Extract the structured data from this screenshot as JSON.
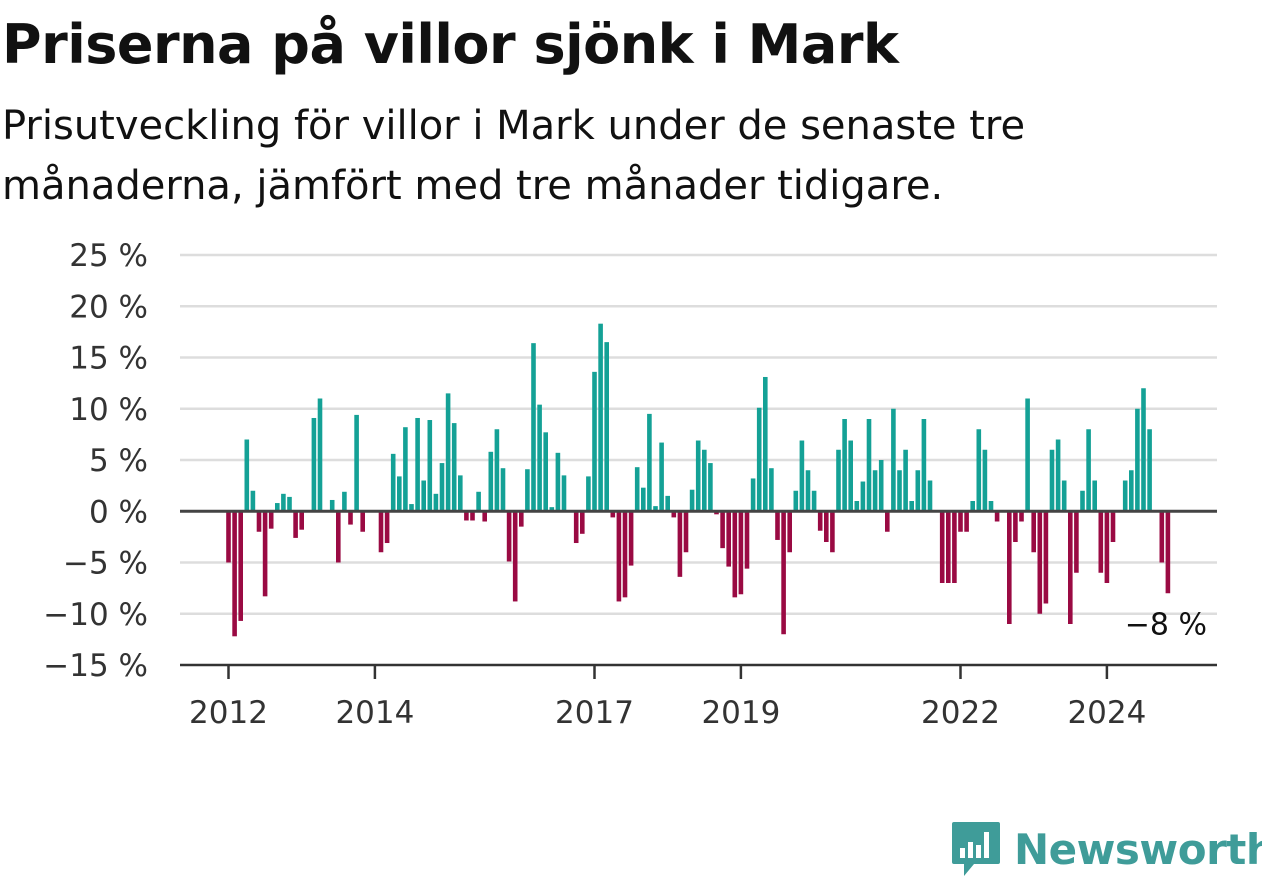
{
  "title": "Priserna på villor sjönk i Mark",
  "subtitle": "Prisutveckling för villor i Mark under de senaste tre månaderna, jämfört med tre månader tidigare.",
  "brand": {
    "name": "Newsworthy",
    "icon": "newsworthy-chart-bubble-icon",
    "color": "#3f9c99"
  },
  "chart_data": {
    "type": "bar",
    "x_start": "2012-01",
    "x_interval": "month",
    "y_unit": "%",
    "ylim": [
      -15,
      25
    ],
    "yticks": [
      -15,
      -10,
      -5,
      0,
      5,
      10,
      15,
      20,
      25
    ],
    "ytick_labels": [
      "−15 %",
      "−10 %",
      "−5 %",
      "0 %",
      "5 %",
      "10 %",
      "15 %",
      "20 %",
      "25 %"
    ],
    "xtick_labels": [
      "2012",
      "2014",
      "2017",
      "2019",
      "2022",
      "2024"
    ],
    "xtick_years": [
      2012,
      2014,
      2017,
      2019,
      2022,
      2024
    ],
    "grid": true,
    "legend": "none",
    "positive_color": "#14a196",
    "negative_color": "#9a0a43",
    "values": [
      -5,
      -12.2,
      -10.7,
      7,
      2,
      -2,
      -8.3,
      -1.7,
      0.8,
      1.7,
      1.4,
      -2.6,
      -1.8,
      0,
      9.1,
      11,
      0,
      1.1,
      -5,
      1.9,
      -1.3,
      9.4,
      -2,
      0,
      0,
      -4,
      -3.1,
      5.6,
      3.4,
      8.2,
      0.7,
      9.1,
      3,
      8.9,
      1.7,
      4.7,
      11.5,
      8.6,
      3.5,
      -0.9,
      -0.9,
      1.9,
      -1,
      5.8,
      8,
      4.2,
      -4.9,
      -8.8,
      -1.5,
      4.1,
      16.4,
      10.4,
      7.7,
      0.4,
      5.7,
      3.5,
      0,
      -3.1,
      -2.2,
      3.4,
      13.6,
      18.3,
      16.5,
      -0.6,
      -8.8,
      -8.4,
      -5.3,
      4.3,
      2.3,
      9.5,
      0.5,
      6.7,
      1.5,
      -0.6,
      -6.4,
      -4,
      2.1,
      6.9,
      6,
      4.7,
      -0.3,
      -3.6,
      -5.4,
      -8.4,
      -8.1,
      -5.6,
      3.2,
      10.1,
      13.1,
      4.2,
      -2.8,
      -12,
      -4,
      2,
      6.9,
      4,
      2,
      -1.9,
      -3,
      -4,
      6,
      9,
      6.9,
      1,
      2.9,
      9,
      4,
      5,
      -2,
      10,
      4,
      6,
      1,
      4,
      9,
      3,
      0,
      -7,
      -7,
      -7,
      -2,
      -2,
      1,
      8,
      6,
      1,
      -1,
      0,
      -11,
      -3,
      -1,
      11,
      -4,
      -10,
      -9,
      6,
      7,
      3,
      -11,
      -6,
      2,
      8,
      3,
      -6,
      -7,
      -3,
      0,
      3,
      4,
      10,
      12,
      8,
      0,
      -5,
      -8
    ],
    "last_value_label": "−8 %"
  }
}
